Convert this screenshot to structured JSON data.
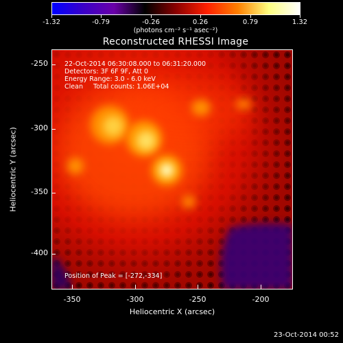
{
  "colorbar": {
    "ticks": [
      "-1.32",
      "-0.79",
      "-0.26",
      "0.26",
      "0.79",
      "1.32"
    ],
    "unit_label": "(photons cm⁻² s⁻¹ asec⁻²)"
  },
  "title": "Reconstructed RHESSI Image",
  "annotations": {
    "time_range": "22-Oct-2014 06:30:08.000 to 06:31:20.000",
    "detectors": "Detectors: 3F 6F 9F, Att 0",
    "energy_range": "Energy Range: 3.0 - 6.0 keV",
    "clean_counts": "Clean     Total counts: 1.06E+04",
    "peak_position": "Position of Peak = [-272,-334]"
  },
  "axes": {
    "xlabel": "Heliocentric X (arcsec)",
    "ylabel": "Heliocentric Y (arcsec)",
    "xticks": [
      "-350",
      "-300",
      "-250",
      "-200"
    ],
    "yticks": [
      "-250",
      "-300",
      "-350",
      "-400"
    ],
    "xlim": [
      -365,
      -177
    ],
    "ylim": [
      -432,
      -235
    ]
  },
  "colors": {
    "colorbar_stops": [
      "#0000ff",
      "#3a00c8",
      "#6a00a8",
      "#000000",
      "#8a0000",
      "#ff2000",
      "#ff8000",
      "#ffff80",
      "#ffffff"
    ]
  },
  "footer_timestamp": "23-Oct-2014 00:52"
}
